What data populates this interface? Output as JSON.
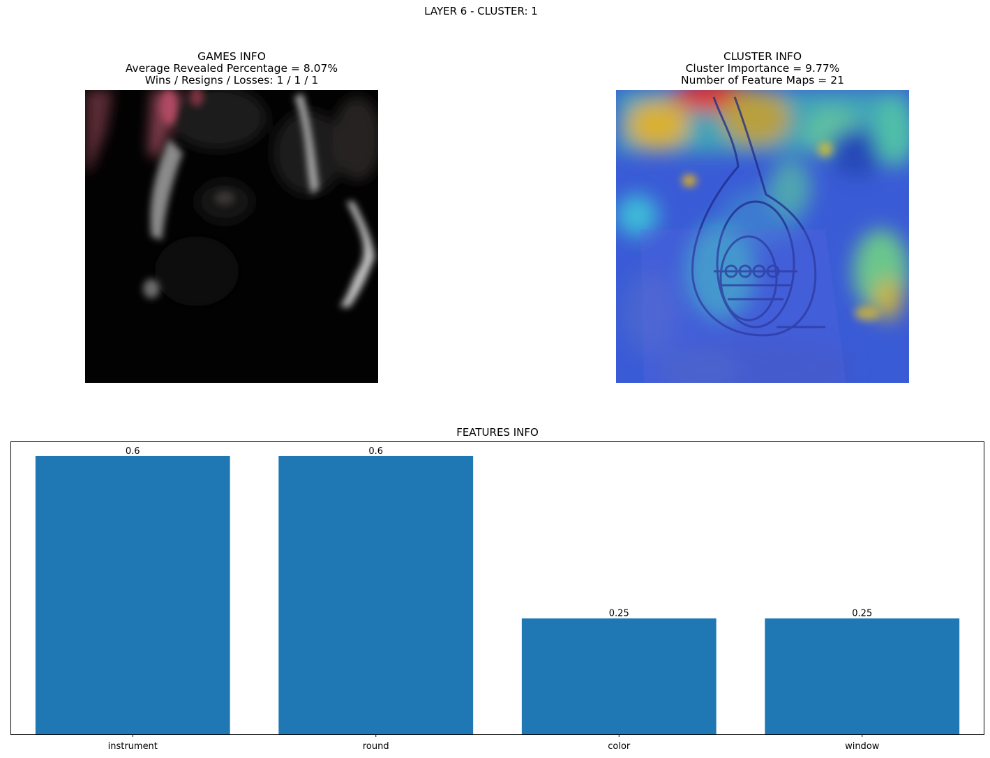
{
  "figure": {
    "title": "LAYER 6 - CLUSTER: 1"
  },
  "games_info": {
    "title": "GAMES INFO",
    "line1": "Average Revealed Percentage = 8.07%",
    "line2": "Wins / Resigns / Losses: 1 / 1 / 1"
  },
  "cluster_info": {
    "title": "CLUSTER INFO",
    "line1": "Cluster Importance = 9.77%",
    "line2": "Number of Feature Maps = 21"
  },
  "chart_data": {
    "type": "bar",
    "title": "FEATURES INFO",
    "categories": [
      "instrument",
      "round",
      "color",
      "window"
    ],
    "values": [
      0.6,
      0.6,
      0.25,
      0.25
    ],
    "value_labels": [
      "0.6",
      "0.6",
      "0.25",
      "0.25"
    ],
    "xlabel": "",
    "ylabel": "",
    "ylim": [
      0,
      0.63
    ],
    "grid": false,
    "bar_color": "#1f77b4"
  }
}
